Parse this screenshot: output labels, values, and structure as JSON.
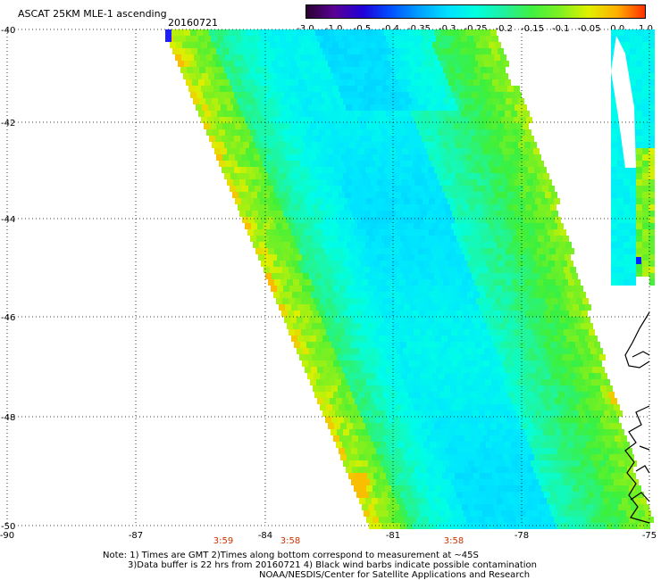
{
  "header": {
    "title": "ASCAT 25KM MLE-1 ascending",
    "date": "20160721"
  },
  "colorbar": {
    "tick_labels": [
      "-3.0",
      "-1.0",
      "-0.5",
      "-0.4",
      "-0.35",
      "-0.3",
      "-0.25",
      "-0.2",
      "-0.15",
      "-0.1",
      "-0.05",
      "0.0",
      "1.0"
    ],
    "colors": [
      "#2a0030",
      "#5a0095",
      "#2000d8",
      "#0050ff",
      "#00a0ff",
      "#00e0ff",
      "#00ffe0",
      "#20f0a0",
      "#40f040",
      "#80f020",
      "#e0f000",
      "#ffb000",
      "#ff3000"
    ]
  },
  "map": {
    "x_tick_labels": [
      "-90",
      "-87",
      "-84",
      "-81",
      "-78",
      "-75"
    ],
    "y_tick_labels": [
      "-40",
      "-42",
      "-44",
      "-46",
      "-48",
      "-50"
    ],
    "time_labels": [
      "3:59",
      "3:58",
      "3:58"
    ],
    "time_label_color": "#cc3300",
    "grid": "dotted",
    "icons": [
      "coastline-icon"
    ]
  },
  "notes": {
    "line1": "Note: 1) Times are GMT 2)Times along bottom correspond to measurement at ~45S",
    "line2": "3)Data buffer is 22 hrs from 20160721 4) Black wind barbs indicate possible contamination",
    "line3": "NOAA/NESDIS/Center for Satellite Applications and Research"
  }
}
